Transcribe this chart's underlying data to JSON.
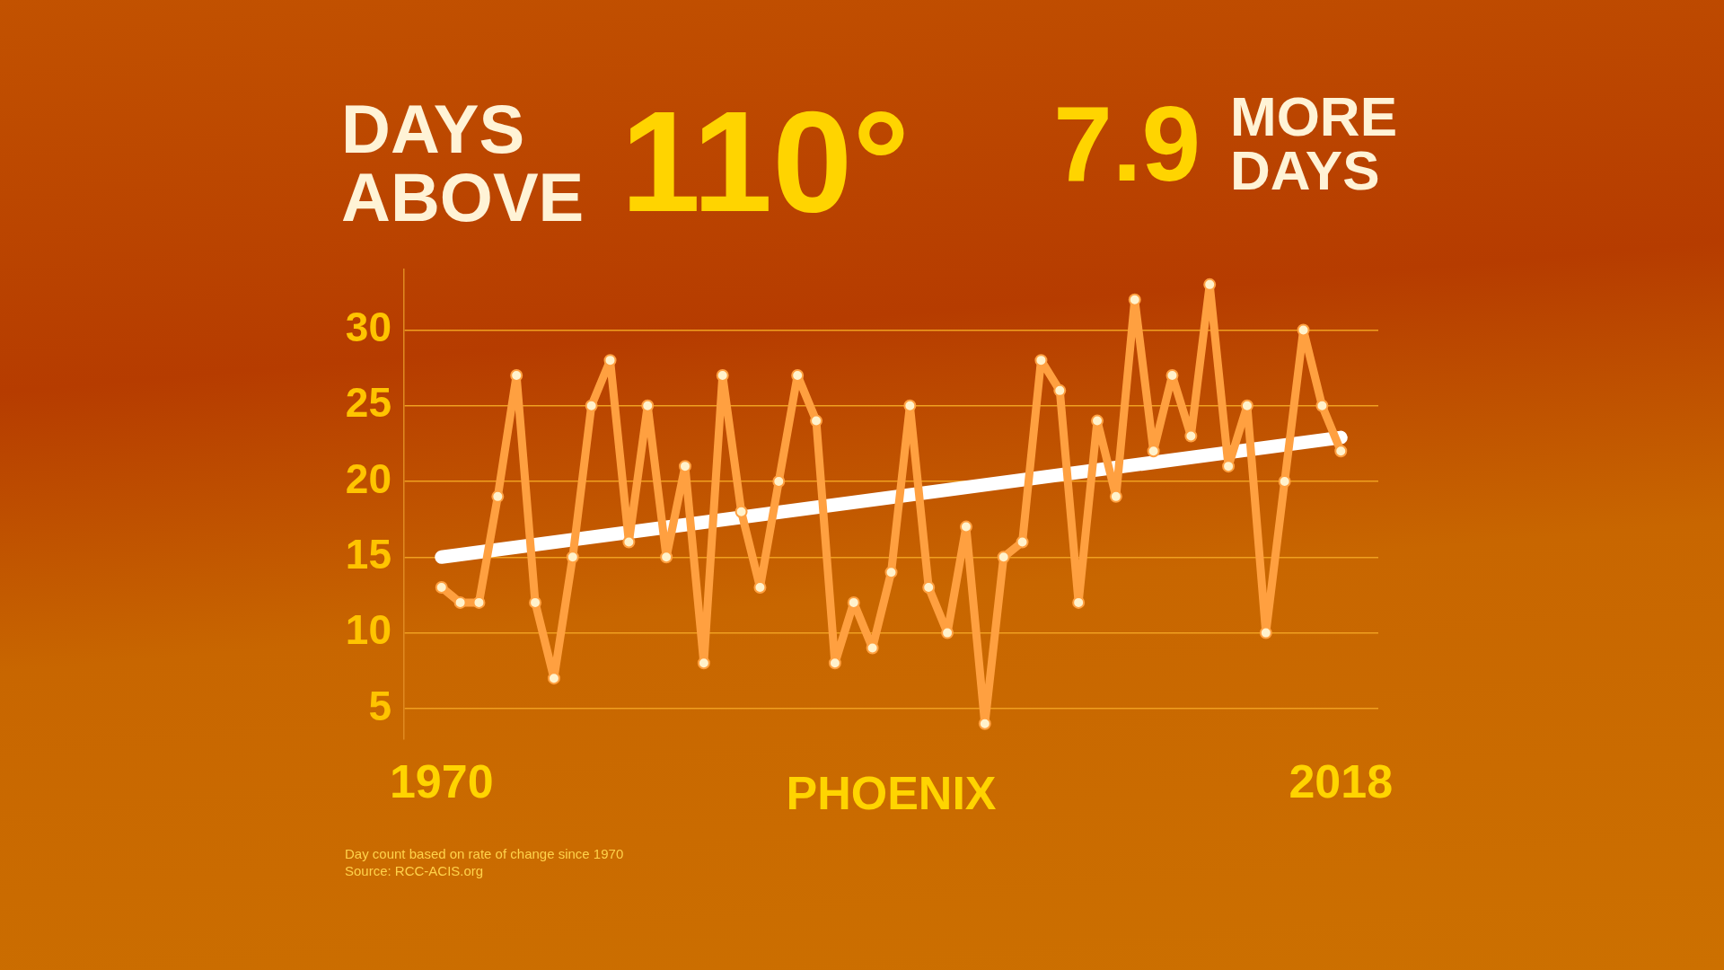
{
  "chart_data": {
    "type": "line",
    "title": "DAYS ABOVE 110°",
    "xlabel": "PHOENIX",
    "annotations": [
      "7.9 MORE DAYS",
      "Day count based on rate of change since 1970",
      "Source: RCC-ACIS.org"
    ],
    "x": [
      1970,
      1971,
      1972,
      1973,
      1974,
      1975,
      1976,
      1977,
      1978,
      1979,
      1980,
      1981,
      1982,
      1983,
      1984,
      1985,
      1986,
      1987,
      1988,
      1989,
      1990,
      1991,
      1992,
      1993,
      1994,
      1995,
      1996,
      1997,
      1998,
      1999,
      2000,
      2001,
      2002,
      2003,
      2004,
      2005,
      2006,
      2007,
      2008,
      2009,
      2010,
      2011,
      2012,
      2013,
      2014,
      2015,
      2016,
      2017,
      2018
    ],
    "series": [
      {
        "color": "#ffa040",
        "values": [
          13,
          12,
          12,
          19,
          27,
          12,
          7,
          15,
          25,
          28,
          16,
          25,
          15,
          21,
          8,
          27,
          18,
          13,
          20,
          27,
          24,
          8,
          12,
          9,
          14,
          25,
          13,
          10,
          17,
          4,
          15,
          16,
          28,
          26,
          12,
          24,
          19,
          32,
          22,
          27,
          23,
          33,
          21,
          25,
          10,
          20,
          30,
          25,
          22
        ]
      },
      {
        "type": "line",
        "color": "#ffffff",
        "x": [
          1970,
          2018
        ],
        "values": [
          15,
          22.9
        ],
        "marker": "none"
      }
    ],
    "xlim": [
      1968,
      2020
    ],
    "xticks": [
      1970,
      2018
    ],
    "ylim": [
      3,
      34
    ],
    "yticks": [
      5,
      10,
      15,
      20,
      25,
      30
    ],
    "grid": "y",
    "legend": false,
    "marker": "circle",
    "line_style": "solid"
  }
}
